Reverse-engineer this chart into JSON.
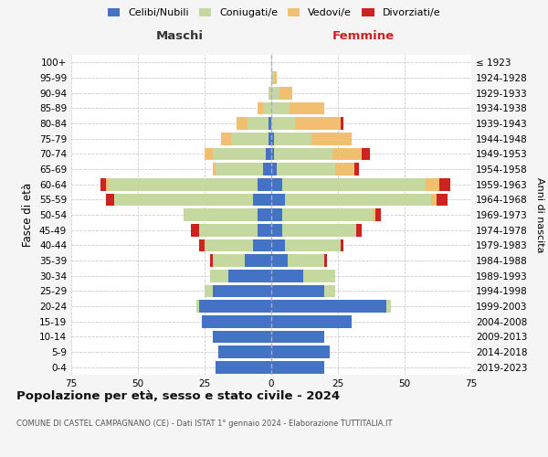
{
  "age_groups": [
    "0-4",
    "5-9",
    "10-14",
    "15-19",
    "20-24",
    "25-29",
    "30-34",
    "35-39",
    "40-44",
    "45-49",
    "50-54",
    "55-59",
    "60-64",
    "65-69",
    "70-74",
    "75-79",
    "80-84",
    "85-89",
    "90-94",
    "95-99",
    "100+"
  ],
  "birth_years": [
    "2019-2023",
    "2014-2018",
    "2009-2013",
    "2004-2008",
    "1999-2003",
    "1994-1998",
    "1989-1993",
    "1984-1988",
    "1979-1983",
    "1974-1978",
    "1969-1973",
    "1964-1968",
    "1959-1963",
    "1954-1958",
    "1949-1953",
    "1944-1948",
    "1939-1943",
    "1934-1938",
    "1929-1933",
    "1924-1928",
    "≤ 1923"
  ],
  "maschi": {
    "celibi": [
      21,
      20,
      22,
      26,
      27,
      22,
      16,
      10,
      7,
      5,
      5,
      7,
      5,
      3,
      2,
      1,
      1,
      0,
      0,
      0,
      0
    ],
    "coniugati": [
      0,
      0,
      0,
      0,
      1,
      3,
      7,
      12,
      18,
      22,
      28,
      52,
      56,
      18,
      20,
      14,
      8,
      3,
      1,
      0,
      0
    ],
    "vedovi": [
      0,
      0,
      0,
      0,
      0,
      0,
      0,
      0,
      0,
      0,
      0,
      0,
      1,
      1,
      3,
      4,
      4,
      2,
      0,
      0,
      0
    ],
    "divorziati": [
      0,
      0,
      0,
      0,
      0,
      0,
      0,
      1,
      2,
      3,
      0,
      3,
      2,
      0,
      0,
      0,
      0,
      0,
      0,
      0,
      0
    ]
  },
  "femmine": {
    "nubili": [
      20,
      22,
      20,
      30,
      43,
      20,
      12,
      6,
      5,
      4,
      4,
      5,
      4,
      2,
      1,
      1,
      0,
      0,
      0,
      0,
      0
    ],
    "coniugate": [
      0,
      0,
      0,
      0,
      2,
      4,
      12,
      14,
      21,
      28,
      34,
      55,
      54,
      22,
      22,
      14,
      9,
      7,
      3,
      1,
      0
    ],
    "vedove": [
      0,
      0,
      0,
      0,
      0,
      0,
      0,
      0,
      0,
      0,
      1,
      2,
      5,
      7,
      11,
      15,
      17,
      13,
      5,
      1,
      0
    ],
    "divorziate": [
      0,
      0,
      0,
      0,
      0,
      0,
      0,
      1,
      1,
      2,
      2,
      4,
      4,
      2,
      3,
      0,
      1,
      0,
      0,
      0,
      0
    ]
  },
  "colors": {
    "celibi": "#4472c4",
    "coniugati": "#c5d8a0",
    "vedovi": "#f0c070",
    "divorziati": "#cc2222"
  },
  "xlim": 75,
  "title": "Popolazione per età, sesso e stato civile - 2024",
  "subtitle": "COMUNE DI CASTEL CAMPAGNANO (CE) - Dati ISTAT 1° gennaio 2024 - Elaborazione TUTTITALIA.IT",
  "ylabel_left": "Fasce di età",
  "ylabel_right": "Anni di nascita",
  "xlabel_maschi": "Maschi",
  "xlabel_femmine": "Femmine",
  "bg_color": "#f5f5f5",
  "plot_bg": "#ffffff",
  "legend": [
    "Celibi/Nubili",
    "Coniugati/e",
    "Vedovi/e",
    "Divorziati/e"
  ]
}
